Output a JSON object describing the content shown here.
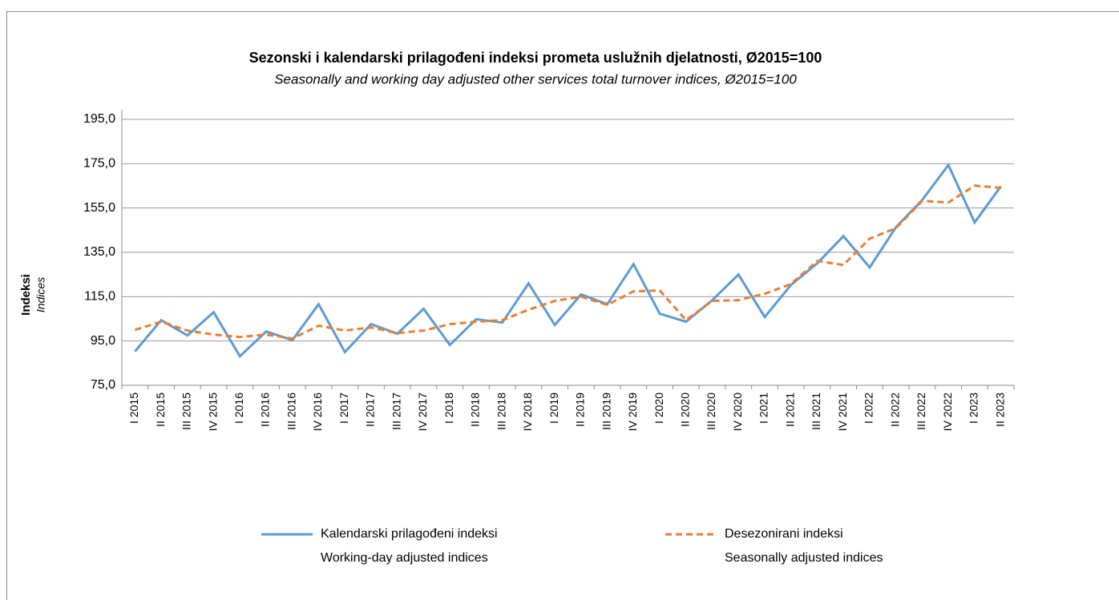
{
  "chart_data": {
    "type": "line",
    "title": "Sezonski i kalendarski prilagođeni indeksi prometa uslužnih djelatnosti, Ø2015=100",
    "subtitle": "Seasonally and working day adjusted other services total turnover indices, Ø2015=100",
    "y_label": "Indeksi",
    "y_label_en": "Indices",
    "categories": [
      "I 2015",
      "II 2015",
      "III 2015",
      "IV 2015",
      "I 2016",
      "II 2016",
      "III 2016",
      "IV 2016",
      "I 2017",
      "II 2017",
      "III 2017",
      "IV 2017",
      "I 2018",
      "II 2018",
      "III 2018",
      "IV 2018",
      "I 2019",
      "II 2019",
      "III 2019",
      "IV 2019",
      "I 2020",
      "II 2020",
      "III 2020",
      "IV 2020",
      "I 2021",
      "II 2021",
      "III 2021",
      "IV 2021",
      "I 2022",
      "II 2022",
      "III 2022",
      "IV 2022",
      "I 2023",
      "II 2023"
    ],
    "series": [
      {
        "name": "Kalendarski prilagođeni indeksi",
        "name_en": "Working-day adjusted indices",
        "color": "#5b9bd5",
        "dashed": false,
        "values": [
          90.3,
          104.4,
          97.5,
          108.0,
          88.1,
          99.3,
          95.4,
          111.6,
          90.0,
          102.6,
          98.3,
          109.5,
          93.2,
          104.8,
          103.3,
          121.0,
          102.2,
          116.0,
          111.6,
          129.7,
          107.3,
          103.7,
          113.4,
          125.0,
          105.8,
          120.3,
          130.0,
          142.3,
          128.2,
          146.3,
          158.6,
          174.4,
          148.5,
          164.8
        ]
      },
      {
        "name": "Desezonirani indeksi",
        "name_en": "Seasonally adjusted indices",
        "color": "#ed7d31",
        "dashed": true,
        "values": [
          100.0,
          103.7,
          99.7,
          97.9,
          96.8,
          97.9,
          96.1,
          101.9,
          99.7,
          101.1,
          98.6,
          99.7,
          102.6,
          103.7,
          104.4,
          109.1,
          113.1,
          115.0,
          111.3,
          117.4,
          117.8,
          104.4,
          113.1,
          113.4,
          116.3,
          120.7,
          131.1,
          129.3,
          141.2,
          145.9,
          158.2,
          157.5,
          165.1,
          164.1
        ]
      }
    ],
    "ylim": [
      75,
      195
    ],
    "yticks": [
      {
        "value": 75,
        "label": "75,0"
      },
      {
        "value": 95,
        "label": "95,0"
      },
      {
        "value": 115,
        "label": "115,0"
      },
      {
        "value": 135,
        "label": "135,0"
      },
      {
        "value": 155,
        "label": "155,0"
      },
      {
        "value": 175,
        "label": "175,0"
      },
      {
        "value": 195,
        "label": "195,0"
      }
    ],
    "grid": true
  }
}
